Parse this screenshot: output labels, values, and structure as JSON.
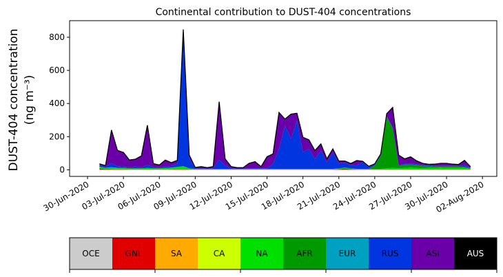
{
  "chart_data": {
    "type": "area",
    "stacked": true,
    "title": "Continental contribution to DUST-404 concentrations",
    "ylabel_line1": "DUST-404 concentration",
    "ylabel_line2": "(ng m⁻³)",
    "ylim": [
      -40,
      900
    ],
    "yticks": [
      0,
      200,
      400,
      600,
      800
    ],
    "xlim": [
      -2.5,
      33.2
    ],
    "xticks": [
      {
        "x": -1,
        "label": "30-Jun-2020"
      },
      {
        "x": 2,
        "label": "03-Jul-2020"
      },
      {
        "x": 5,
        "label": "06-Jul-2020"
      },
      {
        "x": 8,
        "label": "09-Jul-2020"
      },
      {
        "x": 11,
        "label": "12-Jul-2020"
      },
      {
        "x": 14,
        "label": "15-Jul-2020"
      },
      {
        "x": 17,
        "label": "18-Jul-2020"
      },
      {
        "x": 20,
        "label": "21-Jul-2020"
      },
      {
        "x": 23,
        "label": "24-Jul-2020"
      },
      {
        "x": 26,
        "label": "27-Jul-2020"
      },
      {
        "x": 29,
        "label": "30-Jul-2020"
      },
      {
        "x": 32,
        "label": "02-Aug-2020"
      }
    ],
    "x": [
      0,
      0.5,
      1,
      1.5,
      2,
      2.5,
      3,
      3.5,
      4,
      4.5,
      5,
      5.5,
      6,
      6.5,
      7,
      7.5,
      8,
      8.5,
      9,
      9.5,
      10,
      10.5,
      11,
      11.5,
      12,
      12.5,
      13,
      13.5,
      14,
      14.5,
      15,
      15.5,
      16,
      16.5,
      17,
      17.5,
      18,
      18.5,
      19,
      19.5,
      20,
      20.5,
      21,
      21.5,
      22,
      22.5,
      23,
      23.5,
      24,
      24.5,
      25,
      25.5,
      26,
      26.5,
      27,
      27.5,
      28,
      28.5,
      29,
      29.5,
      30,
      30.5,
      31
    ],
    "series": [
      {
        "name": "GNL",
        "color": "#e00000",
        "values": [
          8,
          4,
          3,
          2,
          2,
          1,
          1,
          1,
          1,
          1,
          1,
          1,
          1,
          2,
          2,
          1,
          1,
          1,
          1,
          1,
          1,
          1,
          1,
          1,
          1,
          1,
          1,
          1,
          1,
          1,
          1,
          1,
          1,
          1,
          1,
          1,
          1,
          1,
          1,
          1,
          3,
          8,
          3,
          1,
          1,
          1,
          1,
          1,
          1,
          1,
          1,
          1,
          1,
          1,
          1,
          1,
          1,
          1,
          1,
          1,
          1,
          1,
          1
        ]
      },
      {
        "name": "NA",
        "color": "#00e000",
        "values": [
          10,
          8,
          12,
          10,
          10,
          8,
          8,
          8,
          10,
          8,
          8,
          10,
          12,
          15,
          20,
          8,
          5,
          5,
          5,
          5,
          5,
          5,
          5,
          5,
          5,
          5,
          5,
          5,
          5,
          5,
          5,
          5,
          5,
          5,
          5,
          5,
          5,
          5,
          5,
          5,
          5,
          5,
          5,
          5,
          5,
          5,
          5,
          5,
          8,
          10,
          8,
          10,
          12,
          10,
          8,
          10,
          10,
          12,
          10,
          10,
          10,
          10,
          6
        ]
      },
      {
        "name": "AFR",
        "color": "#009900",
        "values": [
          0,
          0,
          0,
          0,
          0,
          0,
          0,
          0,
          0,
          0,
          0,
          0,
          0,
          0,
          0,
          0,
          0,
          0,
          0,
          0,
          0,
          0,
          0,
          0,
          0,
          0,
          0,
          0,
          0,
          0,
          0,
          0,
          0,
          0,
          0,
          0,
          0,
          0,
          0,
          0,
          0,
          0,
          0,
          0,
          0,
          0,
          20,
          80,
          310,
          240,
          15,
          20,
          20,
          18,
          15,
          12,
          8,
          6,
          8,
          8,
          8,
          6,
          4
        ]
      },
      {
        "name": "RUS",
        "color": "#0035e0",
        "values": [
          12,
          8,
          25,
          10,
          8,
          5,
          10,
          5,
          18,
          8,
          5,
          8,
          10,
          20,
          820,
          60,
          3,
          3,
          2,
          3,
          55,
          20,
          3,
          2,
          2,
          3,
          3,
          3,
          3,
          30,
          120,
          260,
          180,
          290,
          100,
          120,
          60,
          110,
          40,
          100,
          30,
          30,
          20,
          20,
          40,
          10,
          5,
          5,
          5,
          5,
          5,
          5,
          5,
          5,
          5,
          5,
          5,
          5,
          5,
          5,
          5,
          10,
          3
        ]
      },
      {
        "name": "ASI",
        "color": "#6a00a8",
        "values": [
          6,
          5,
          200,
          95,
          85,
          45,
          45,
          70,
          240,
          20,
          15,
          40,
          20,
          20,
          5,
          20,
          5,
          10,
          5,
          10,
          350,
          40,
          10,
          5,
          5,
          30,
          40,
          10,
          70,
          60,
          220,
          40,
          150,
          45,
          90,
          55,
          50,
          40,
          20,
          20,
          15,
          10,
          10,
          30,
          5,
          5,
          5,
          5,
          15,
          120,
          60,
          30,
          40,
          20,
          10,
          5,
          10,
          15,
          15,
          10,
          8,
          30,
          5
        ]
      }
    ],
    "legend": [
      {
        "label": "OCE",
        "color": "#cccccc",
        "text_color": "#000000"
      },
      {
        "label": "GNL",
        "color": "#e00000",
        "text_color": "#000000"
      },
      {
        "label": "SA",
        "color": "#ffaa00",
        "text_color": "#000000"
      },
      {
        "label": "CA",
        "color": "#ccff00",
        "text_color": "#000000"
      },
      {
        "label": "NA",
        "color": "#00e000",
        "text_color": "#000000"
      },
      {
        "label": "AFR",
        "color": "#009900",
        "text_color": "#000000"
      },
      {
        "label": "EUR",
        "color": "#00a0c0",
        "text_color": "#000000"
      },
      {
        "label": "RUS",
        "color": "#0035e0",
        "text_color": "#000000"
      },
      {
        "label": "ASI",
        "color": "#6a00a8",
        "text_color": "#000000"
      },
      {
        "label": "AUS",
        "color": "#000000",
        "text_color": "#ffffff"
      }
    ],
    "grid": false,
    "legend_placement": "bottom colorbar"
  }
}
